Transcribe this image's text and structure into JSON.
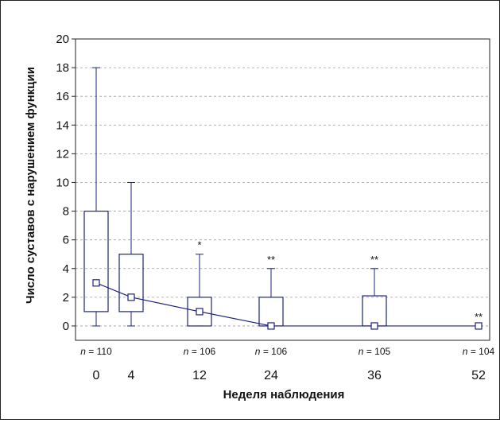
{
  "chart_data": {
    "type": "box",
    "xlabel": "Неделя наблюдения",
    "ylabel": "Число суставов с нарушением функции",
    "ylim": [
      -1,
      20
    ],
    "yticks": [
      0,
      2,
      4,
      6,
      8,
      10,
      12,
      14,
      16,
      18,
      20
    ],
    "grid": true,
    "boxes": [
      {
        "week": 0,
        "min": 0,
        "q1": 1,
        "median": 3,
        "q3": 8,
        "max": 18,
        "sig": ""
      },
      {
        "week": 4,
        "min": 0,
        "q1": 1,
        "median": 2,
        "q3": 5,
        "max": 10,
        "sig": ""
      },
      {
        "week": 12,
        "min": 0,
        "q1": 0,
        "median": 1,
        "q3": 2,
        "max": 5,
        "sig": "*"
      },
      {
        "week": 24,
        "min": 0,
        "q1": 0,
        "median": 0,
        "q3": 2,
        "max": 4,
        "sig": "**"
      },
      {
        "week": 36,
        "min": 0,
        "q1": 0,
        "median": 0,
        "q3": 2.1,
        "max": 4,
        "sig": "**"
      },
      {
        "week": 52,
        "min": 0,
        "q1": 0,
        "median": 0,
        "q3": 0,
        "max": 0,
        "sig": "**"
      }
    ],
    "n_labels": [
      {
        "week": 0,
        "prefix": "n",
        "text": " = 110"
      },
      {
        "week": 12,
        "prefix": "n",
        "text": " = 106"
      },
      {
        "week": 24,
        "prefix": "n",
        "text": " = 106"
      },
      {
        "week": 36,
        "prefix": "n",
        "text": " = 105"
      },
      {
        "week": 52,
        "prefix": "n",
        "text": " = 104"
      }
    ],
    "x_tick_labels": [
      "0",
      "4",
      "12",
      "24",
      "36",
      "52"
    ],
    "colors": {
      "box": "#1a237e",
      "line": "#1a237e",
      "grid": "#9e9e9e"
    }
  }
}
